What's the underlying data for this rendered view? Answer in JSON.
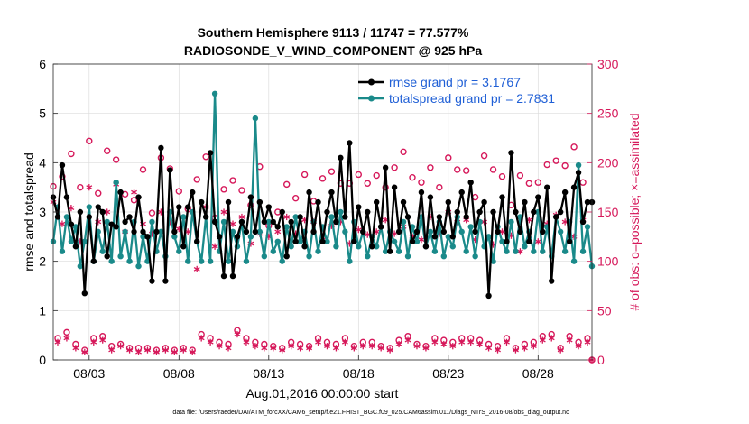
{
  "chart_data": {
    "type": "line",
    "title": "Southern Hemisphere 9113 / 11747 = 77.577%",
    "subtitle": "RADIOSONDE_V_WIND_COMPONENT @ 925 hPa",
    "xlabel": "Aug.01,2016 00:00:00 start",
    "ylabel": "rmse and totalspread",
    "y2label": "# of obs: o=possible; ×=assimilated",
    "footer": "data file: /Users/raeder/DAI/ATM_forcXX/CAM6_setup/f.e21.FHIST_BGC.f09_025.CAM6assim.011/Diags_NTrS_2016-08/obs_diag_output.nc",
    "x_ticks": [
      "08/03",
      "08/08",
      "08/13",
      "08/18",
      "08/23",
      "08/28"
    ],
    "x_tick_days": [
      3,
      8,
      13,
      18,
      23,
      28
    ],
    "xlim": [
      1.0,
      31.0
    ],
    "ylim": [
      0,
      6
    ],
    "y_ticks": [
      "0",
      "1",
      "2",
      "3",
      "4",
      "5",
      "6"
    ],
    "y2lim": [
      0,
      300
    ],
    "y2_ticks": [
      "0",
      "50",
      "100",
      "150",
      "200",
      "250",
      "300"
    ],
    "grid": true,
    "legend_position": "top-right",
    "colors": {
      "rmse": "#000000",
      "totalspread": "#1a8a8a",
      "obs": "#d6185a",
      "legend_text": "#1f5fd6"
    },
    "series": [
      {
        "name": "rmse grand pr = 3.1767",
        "axis": "left",
        "x": [
          1.0,
          1.25,
          1.5,
          1.75,
          2.0,
          2.25,
          2.5,
          2.75,
          3.0,
          3.25,
          3.5,
          3.75,
          4.0,
          4.25,
          4.5,
          4.75,
          5.0,
          5.25,
          5.5,
          5.75,
          6.0,
          6.25,
          6.5,
          6.75,
          7.0,
          7.25,
          7.5,
          7.75,
          8.0,
          8.25,
          8.5,
          8.75,
          9.0,
          9.25,
          9.5,
          9.75,
          10.0,
          10.25,
          10.5,
          10.75,
          11.0,
          11.25,
          11.5,
          11.75,
          12.0,
          12.25,
          12.5,
          12.75,
          13.0,
          13.25,
          13.5,
          13.75,
          14.0,
          14.25,
          14.5,
          14.75,
          15.0,
          15.25,
          15.5,
          15.75,
          16.0,
          16.25,
          16.5,
          16.75,
          17.0,
          17.25,
          17.5,
          17.75,
          18.0,
          18.25,
          18.5,
          18.75,
          19.0,
          19.25,
          19.5,
          19.75,
          20.0,
          20.25,
          20.5,
          20.75,
          21.0,
          21.25,
          21.5,
          21.75,
          22.0,
          22.25,
          22.5,
          22.75,
          23.0,
          23.25,
          23.5,
          23.75,
          24.0,
          24.25,
          24.5,
          24.75,
          25.0,
          25.25,
          25.5,
          25.75,
          26.0,
          26.25,
          26.5,
          26.75,
          27.0,
          27.25,
          27.5,
          27.75,
          28.0,
          28.25,
          28.5,
          28.75,
          29.0,
          29.25,
          29.5,
          29.75,
          30.0,
          30.25,
          30.5,
          30.75,
          31.0
        ],
        "values": [
          3.3,
          2.9,
          3.95,
          3.3,
          2.75,
          2.3,
          3.0,
          1.35,
          2.9,
          2.0,
          3.1,
          3.0,
          2.1,
          2.75,
          2.7,
          3.4,
          2.8,
          2.9,
          2.6,
          3.3,
          2.6,
          2.5,
          1.6,
          2.6,
          4.3,
          1.6,
          3.85,
          2.6,
          3.1,
          2.3,
          3.1,
          3.4,
          2.4,
          3.2,
          2.9,
          4.2,
          2.8,
          2.5,
          1.7,
          3.2,
          1.7,
          2.5,
          2.8,
          2.6,
          3.3,
          2.6,
          3.2,
          2.8,
          3.1,
          2.8,
          2.7,
          3.0,
          2.1,
          2.8,
          2.4,
          2.9,
          2.3,
          3.4,
          2.6,
          3.2,
          2.4,
          3.0,
          3.4,
          2.8,
          4.1,
          2.9,
          4.4,
          2.4,
          3.1,
          2.6,
          3.0,
          2.3,
          3.2,
          2.7,
          3.9,
          2.2,
          3.5,
          2.6,
          3.2,
          2.9,
          2.4,
          2.6,
          3.4,
          2.3,
          3.3,
          2.5,
          2.9,
          2.6,
          3.2,
          2.5,
          3.0,
          3.4,
          2.9,
          3.6,
          2.6,
          3.0,
          3.2,
          1.3,
          3.0,
          2.6,
          3.3,
          2.4,
          4.2,
          3.0,
          2.6,
          3.2,
          2.4,
          3.0,
          3.3,
          2.6,
          3.5,
          1.6,
          2.9,
          3.0,
          3.4,
          2.4,
          3.5,
          3.8,
          2.8,
          3.2,
          3.2
        ]
      },
      {
        "name": "totalspread grand pr = 2.7831",
        "axis": "left",
        "x": [
          1.0,
          1.25,
          1.5,
          1.75,
          2.0,
          2.25,
          2.5,
          2.75,
          3.0,
          3.25,
          3.5,
          3.75,
          4.0,
          4.25,
          4.5,
          4.75,
          5.0,
          5.25,
          5.5,
          5.75,
          6.0,
          6.25,
          6.5,
          6.75,
          7.0,
          7.25,
          7.5,
          7.75,
          8.0,
          8.25,
          8.5,
          8.75,
          9.0,
          9.25,
          9.5,
          9.75,
          10.0,
          10.25,
          10.5,
          10.75,
          11.0,
          11.25,
          11.5,
          11.75,
          12.0,
          12.25,
          12.5,
          12.75,
          13.0,
          13.25,
          13.5,
          13.75,
          14.0,
          14.25,
          14.5,
          14.75,
          15.0,
          15.25,
          15.5,
          15.75,
          16.0,
          16.25,
          16.5,
          16.75,
          17.0,
          17.25,
          17.5,
          17.75,
          18.0,
          18.25,
          18.5,
          18.75,
          19.0,
          19.25,
          19.5,
          19.75,
          20.0,
          20.25,
          20.5,
          20.75,
          21.0,
          21.25,
          21.5,
          21.75,
          22.0,
          22.25,
          22.5,
          22.75,
          23.0,
          23.25,
          23.5,
          23.75,
          24.0,
          24.25,
          24.5,
          24.75,
          25.0,
          25.25,
          25.5,
          25.75,
          26.0,
          26.25,
          26.5,
          26.75,
          27.0,
          27.25,
          27.5,
          27.75,
          28.0,
          28.25,
          28.5,
          28.75,
          29.0,
          29.25,
          29.5,
          29.75,
          30.0,
          30.25,
          30.5,
          30.75,
          31.0
        ],
        "values": [
          2.4,
          3.1,
          2.2,
          2.9,
          2.4,
          2.7,
          1.9,
          2.4,
          3.1,
          2.0,
          2.6,
          2.2,
          2.8,
          2.0,
          3.6,
          2.1,
          2.6,
          2.0,
          2.8,
          1.9,
          2.5,
          2.0,
          2.8,
          2.2,
          2.6,
          2.1,
          3.0,
          2.5,
          2.2,
          2.9,
          2.0,
          3.0,
          2.4,
          2.0,
          2.9,
          2.0,
          5.4,
          2.2,
          2.8,
          2.0,
          2.6,
          2.3,
          2.8,
          2.0,
          2.5,
          4.9,
          2.6,
          2.1,
          2.8,
          2.2,
          2.4,
          2.0,
          2.7,
          2.3,
          2.9,
          2.4,
          2.6,
          2.1,
          2.8,
          2.2,
          2.7,
          2.4,
          2.9,
          2.3,
          3.0,
          2.6,
          2.0,
          2.8,
          2.3,
          2.6,
          2.1,
          2.5,
          2.3,
          2.7,
          2.2,
          2.6,
          2.4,
          2.2,
          2.8,
          2.1,
          2.7,
          2.4,
          2.9,
          2.3,
          2.6,
          2.2,
          2.8,
          2.1,
          2.5,
          2.3,
          2.9,
          2.6,
          2.2,
          2.7,
          2.1,
          2.8,
          2.3,
          2.5,
          2.0,
          2.7,
          2.4,
          2.2,
          2.8,
          2.2,
          2.9,
          2.3,
          2.6,
          2.2,
          3.0,
          2.2,
          2.7,
          2.1,
          2.9,
          2.6,
          2.2,
          2.8,
          2.0,
          3.95,
          2.2,
          2.7,
          1.9
        ]
      },
      {
        "name": "possible",
        "axis": "right",
        "marker": "circle",
        "x": [
          1.0,
          1.25,
          1.5,
          1.75,
          2.0,
          2.25,
          2.5,
          2.75,
          3.0,
          3.25,
          3.5,
          3.75,
          4.0,
          4.25,
          4.5,
          4.75,
          5.0,
          5.25,
          5.5,
          5.75,
          6.0,
          6.25,
          6.5,
          6.75,
          7.0,
          7.25,
          7.5,
          7.75,
          8.0,
          8.25,
          8.5,
          8.75,
          9.0,
          9.25,
          9.5,
          9.75,
          10.0,
          10.25,
          10.5,
          10.75,
          11.0,
          11.25,
          11.5,
          11.75,
          12.0,
          12.25,
          12.5,
          12.75,
          13.0,
          13.25,
          13.5,
          13.75,
          14.0,
          14.25,
          14.5,
          14.75,
          15.0,
          15.25,
          15.5,
          15.75,
          16.0,
          16.25,
          16.5,
          16.75,
          17.0,
          17.25,
          17.5,
          17.75,
          18.0,
          18.25,
          18.5,
          18.75,
          19.0,
          19.25,
          19.5,
          19.75,
          20.0,
          20.25,
          20.5,
          20.75,
          21.0,
          21.25,
          21.5,
          21.75,
          22.0,
          22.25,
          22.5,
          22.75,
          23.0,
          23.25,
          23.5,
          23.75,
          24.0,
          24.25,
          24.5,
          24.75,
          25.0,
          25.25,
          25.5,
          25.75,
          26.0,
          26.25,
          26.5,
          26.75,
          27.0,
          27.25,
          27.5,
          27.75,
          28.0,
          28.25,
          28.5,
          28.75,
          29.0,
          29.25,
          29.5,
          29.75,
          30.0,
          30.25,
          30.5,
          30.75,
          31.0
        ],
        "values": [
          176,
          22,
          186,
          28,
          209,
          16,
          175,
          10,
          222,
          22,
          169,
          24,
          212,
          14,
          203,
          16,
          168,
          12,
          162,
          12,
          193,
          12,
          149,
          10,
          205,
          12,
          194,
          10,
          171,
          12,
          153,
          10,
          183,
          26,
          206,
          22,
          144,
          18,
          173,
          16,
          182,
          30,
          172,
          22,
          157,
          18,
          196,
          16,
          136,
          14,
          150,
          12,
          178,
          18,
          164,
          16,
          188,
          14,
          161,
          22,
          184,
          18,
          191,
          16,
          179,
          22,
          179,
          14,
          188,
          18,
          179,
          18,
          187,
          14,
          175,
          12,
          195,
          20,
          211,
          24,
          185,
          16,
          180,
          14,
          195,
          22,
          175,
          20,
          205,
          18,
          193,
          22,
          192,
          22,
          165,
          20,
          207,
          16,
          193,
          14,
          186,
          22,
          157,
          12,
          187,
          16,
          179,
          18,
          180,
          24,
          198,
          26,
          202,
          12,
          197,
          24,
          216,
          18,
          180,
          22,
          0
        ]
      },
      {
        "name": "assimilated",
        "axis": "right",
        "marker": "asterisk",
        "x": [
          1.0,
          1.25,
          1.5,
          1.75,
          2.0,
          2.25,
          2.5,
          2.75,
          3.0,
          3.25,
          3.5,
          3.75,
          4.0,
          4.25,
          4.5,
          4.75,
          5.0,
          5.25,
          5.5,
          5.75,
          6.0,
          6.25,
          6.5,
          6.75,
          7.0,
          7.25,
          7.5,
          7.75,
          8.0,
          8.25,
          8.5,
          8.75,
          9.0,
          9.25,
          9.5,
          9.75,
          10.0,
          10.25,
          10.5,
          10.75,
          11.0,
          11.25,
          11.5,
          11.75,
          12.0,
          12.25,
          12.5,
          12.75,
          13.0,
          13.25,
          13.5,
          13.75,
          14.0,
          14.25,
          14.5,
          14.75,
          15.0,
          15.25,
          15.5,
          15.75,
          16.0,
          16.25,
          16.5,
          16.75,
          17.0,
          17.25,
          17.5,
          17.75,
          18.0,
          18.25,
          18.5,
          18.75,
          19.0,
          19.25,
          19.5,
          19.75,
          20.0,
          20.25,
          20.5,
          20.75,
          21.0,
          21.25,
          21.5,
          21.75,
          22.0,
          22.25,
          22.5,
          22.75,
          23.0,
          23.25,
          23.5,
          23.75,
          24.0,
          24.25,
          24.5,
          24.75,
          25.0,
          25.25,
          25.5,
          25.75,
          26.0,
          26.25,
          26.5,
          26.75,
          27.0,
          27.25,
          27.5,
          27.75,
          28.0,
          28.25,
          28.5,
          28.75,
          29.0,
          29.25,
          29.5,
          29.75,
          30.0,
          30.25,
          30.5,
          30.75,
          31.0
        ],
        "values": [
          160,
          18,
          138,
          22,
          154,
          12,
          120,
          8,
          175,
          18,
          140,
          20,
          150,
          10,
          178,
          14,
          130,
          10,
          170,
          8,
          138,
          10,
          128,
          8,
          150,
          10,
          140,
          8,
          133,
          10,
          130,
          8,
          92,
          22,
          155,
          18,
          115,
          14,
          150,
          12,
          138,
          26,
          145,
          18,
          118,
          14,
          128,
          12,
          125,
          12,
          130,
          10,
          145,
          14,
          128,
          12,
          142,
          12,
          140,
          18,
          122,
          14,
          136,
          12,
          140,
          18,
          118,
          12,
          132,
          14,
          127,
          14,
          130,
          12,
          142,
          10,
          128,
          16,
          135,
          20,
          125,
          14,
          122,
          12,
          145,
          18,
          128,
          16,
          150,
          14,
          140,
          18,
          142,
          18,
          122,
          16,
          140,
          12,
          117,
          10,
          130,
          18,
          126,
          10,
          110,
          12,
          142,
          14,
          120,
          20,
          138,
          22,
          147,
          10,
          140,
          20,
          125,
          14,
          142,
          18,
          0
        ]
      }
    ],
    "legend": [
      {
        "label": "rmse grand pr = 3.1767",
        "series": 0
      },
      {
        "label": "totalspread grand pr = 2.7831",
        "series": 1
      }
    ]
  }
}
